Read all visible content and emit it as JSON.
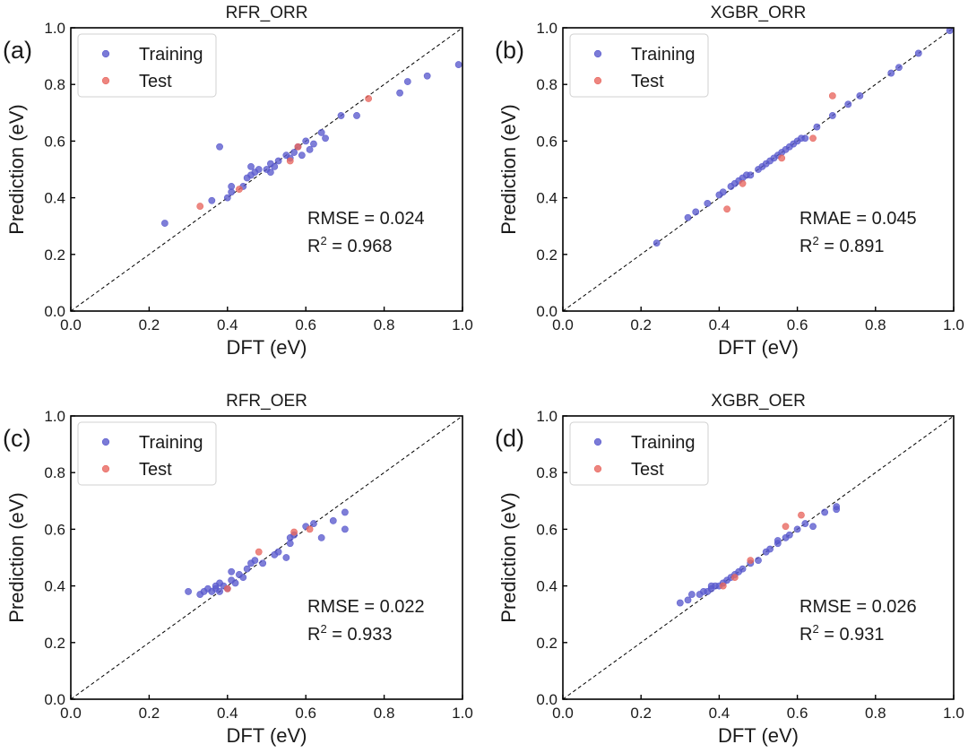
{
  "colors": {
    "training": "#5A5ACD",
    "test": "#E8675F"
  },
  "chart_data": [
    {
      "type": "scatter",
      "letter": "(a)",
      "title": "RFR_ORR",
      "xlabel": "DFT (eV)",
      "ylabel": "Prediction (eV)",
      "xlim": [
        0,
        1
      ],
      "ylim": [
        0,
        1
      ],
      "xticks": [
        "0.0",
        "0.2",
        "0.4",
        "0.6",
        "0.8",
        "1.0"
      ],
      "yticks": [
        "0.0",
        "0.2",
        "0.4",
        "0.6",
        "0.8",
        "1.0"
      ],
      "diagonal": true,
      "legend": {
        "position": "top-left",
        "entries": [
          "Training",
          "Test"
        ]
      },
      "metric": {
        "name": "RMSE",
        "value": "0.024"
      },
      "r2": {
        "base": "R",
        "sup": "2",
        "value": " = 0.968"
      },
      "series": [
        {
          "name": "Training",
          "points": [
            [
              0.24,
              0.31
            ],
            [
              0.36,
              0.39
            ],
            [
              0.38,
              0.58
            ],
            [
              0.4,
              0.4
            ],
            [
              0.41,
              0.42
            ],
            [
              0.41,
              0.44
            ],
            [
              0.44,
              0.44
            ],
            [
              0.45,
              0.47
            ],
            [
              0.46,
              0.48
            ],
            [
              0.46,
              0.51
            ],
            [
              0.47,
              0.49
            ],
            [
              0.48,
              0.5
            ],
            [
              0.5,
              0.5
            ],
            [
              0.51,
              0.52
            ],
            [
              0.51,
              0.49
            ],
            [
              0.52,
              0.51
            ],
            [
              0.53,
              0.53
            ],
            [
              0.55,
              0.55
            ],
            [
              0.56,
              0.54
            ],
            [
              0.57,
              0.56
            ],
            [
              0.58,
              0.58
            ],
            [
              0.59,
              0.55
            ],
            [
              0.6,
              0.6
            ],
            [
              0.61,
              0.57
            ],
            [
              0.62,
              0.59
            ],
            [
              0.64,
              0.63
            ],
            [
              0.65,
              0.61
            ],
            [
              0.69,
              0.69
            ],
            [
              0.73,
              0.69
            ],
            [
              0.84,
              0.77
            ],
            [
              0.86,
              0.81
            ],
            [
              0.91,
              0.83
            ],
            [
              0.99,
              0.87
            ]
          ]
        },
        {
          "name": "Test",
          "points": [
            [
              0.33,
              0.37
            ],
            [
              0.43,
              0.43
            ],
            [
              0.56,
              0.53
            ],
            [
              0.58,
              0.58
            ],
            [
              0.76,
              0.75
            ]
          ]
        }
      ]
    },
    {
      "type": "scatter",
      "letter": "(b)",
      "title": "XGBR_ORR",
      "xlabel": "DFT (eV)",
      "ylabel": "Prediction (eV)",
      "xlim": [
        0,
        1
      ],
      "ylim": [
        0,
        1
      ],
      "xticks": [
        "0.0",
        "0.2",
        "0.4",
        "0.6",
        "0.8",
        "1.0"
      ],
      "yticks": [
        "0.0",
        "0.2",
        "0.4",
        "0.6",
        "0.8",
        "1.0"
      ],
      "diagonal": true,
      "legend": {
        "position": "top-left",
        "entries": [
          "Training",
          "Test"
        ]
      },
      "metric": {
        "name": "RMAE",
        "value": "0.045"
      },
      "r2": {
        "base": "R",
        "sup": "2",
        "value": " = 0.891"
      },
      "series": [
        {
          "name": "Training",
          "points": [
            [
              0.24,
              0.24
            ],
            [
              0.32,
              0.33
            ],
            [
              0.34,
              0.35
            ],
            [
              0.37,
              0.38
            ],
            [
              0.4,
              0.41
            ],
            [
              0.41,
              0.42
            ],
            [
              0.43,
              0.44
            ],
            [
              0.44,
              0.45
            ],
            [
              0.45,
              0.46
            ],
            [
              0.46,
              0.47
            ],
            [
              0.47,
              0.48
            ],
            [
              0.48,
              0.48
            ],
            [
              0.5,
              0.5
            ],
            [
              0.51,
              0.51
            ],
            [
              0.52,
              0.52
            ],
            [
              0.53,
              0.53
            ],
            [
              0.54,
              0.54
            ],
            [
              0.55,
              0.55
            ],
            [
              0.56,
              0.56
            ],
            [
              0.57,
              0.57
            ],
            [
              0.58,
              0.58
            ],
            [
              0.59,
              0.59
            ],
            [
              0.6,
              0.6
            ],
            [
              0.61,
              0.61
            ],
            [
              0.62,
              0.61
            ],
            [
              0.65,
              0.65
            ],
            [
              0.69,
              0.69
            ],
            [
              0.73,
              0.73
            ],
            [
              0.76,
              0.76
            ],
            [
              0.84,
              0.84
            ],
            [
              0.86,
              0.86
            ],
            [
              0.91,
              0.91
            ],
            [
              0.99,
              0.99
            ]
          ]
        },
        {
          "name": "Test",
          "points": [
            [
              0.42,
              0.36
            ],
            [
              0.46,
              0.45
            ],
            [
              0.56,
              0.54
            ],
            [
              0.64,
              0.61
            ],
            [
              0.69,
              0.76
            ]
          ]
        }
      ]
    },
    {
      "type": "scatter",
      "letter": "(c)",
      "title": "RFR_OER",
      "xlabel": "DFT (eV)",
      "ylabel": "Prediction (eV)",
      "xlim": [
        0,
        1
      ],
      "ylim": [
        0,
        1
      ],
      "xticks": [
        "0.0",
        "0.2",
        "0.4",
        "0.6",
        "0.8",
        "1.0"
      ],
      "yticks": [
        "0.0",
        "0.2",
        "0.4",
        "0.6",
        "0.8",
        "1.0"
      ],
      "diagonal": true,
      "legend": {
        "position": "top-left",
        "entries": [
          "Training",
          "Test"
        ]
      },
      "metric": {
        "name": "RMSE",
        "value": "0.022"
      },
      "r2": {
        "base": "R",
        "sup": "2",
        "value": " = 0.933"
      },
      "series": [
        {
          "name": "Training",
          "points": [
            [
              0.3,
              0.38
            ],
            [
              0.33,
              0.37
            ],
            [
              0.34,
              0.38
            ],
            [
              0.35,
              0.39
            ],
            [
              0.36,
              0.38
            ],
            [
              0.37,
              0.39
            ],
            [
              0.37,
              0.4
            ],
            [
              0.38,
              0.38
            ],
            [
              0.38,
              0.41
            ],
            [
              0.39,
              0.4
            ],
            [
              0.4,
              0.39
            ],
            [
              0.41,
              0.42
            ],
            [
              0.41,
              0.45
            ],
            [
              0.42,
              0.41
            ],
            [
              0.43,
              0.44
            ],
            [
              0.44,
              0.43
            ],
            [
              0.45,
              0.46
            ],
            [
              0.46,
              0.48
            ],
            [
              0.47,
              0.49
            ],
            [
              0.49,
              0.48
            ],
            [
              0.52,
              0.51
            ],
            [
              0.53,
              0.52
            ],
            [
              0.55,
              0.5
            ],
            [
              0.56,
              0.55
            ],
            [
              0.56,
              0.57
            ],
            [
              0.57,
              0.58
            ],
            [
              0.6,
              0.61
            ],
            [
              0.62,
              0.62
            ],
            [
              0.64,
              0.57
            ],
            [
              0.67,
              0.63
            ],
            [
              0.7,
              0.6
            ],
            [
              0.7,
              0.66
            ]
          ]
        },
        {
          "name": "Test",
          "points": [
            [
              0.4,
              0.39
            ],
            [
              0.48,
              0.52
            ],
            [
              0.57,
              0.59
            ],
            [
              0.61,
              0.6
            ]
          ]
        }
      ]
    },
    {
      "type": "scatter",
      "letter": "(d)",
      "title": "XGBR_OER",
      "xlabel": "DFT (eV)",
      "ylabel": "Prediction (eV)",
      "xlim": [
        0,
        1
      ],
      "ylim": [
        0,
        1
      ],
      "xticks": [
        "0.0",
        "0.2",
        "0.4",
        "0.6",
        "0.8",
        "1.0"
      ],
      "yticks": [
        "0.0",
        "0.2",
        "0.4",
        "0.6",
        "0.8",
        "1.0"
      ],
      "diagonal": true,
      "legend": {
        "position": "top-left",
        "entries": [
          "Training",
          "Test"
        ]
      },
      "metric": {
        "name": "RMSE",
        "value": "0.026"
      },
      "r2": {
        "base": "R",
        "sup": "2",
        "value": " = 0.931"
      },
      "series": [
        {
          "name": "Training",
          "points": [
            [
              0.3,
              0.34
            ],
            [
              0.32,
              0.35
            ],
            [
              0.33,
              0.37
            ],
            [
              0.35,
              0.37
            ],
            [
              0.36,
              0.38
            ],
            [
              0.37,
              0.38
            ],
            [
              0.38,
              0.39
            ],
            [
              0.38,
              0.4
            ],
            [
              0.39,
              0.4
            ],
            [
              0.4,
              0.4
            ],
            [
              0.41,
              0.41
            ],
            [
              0.42,
              0.42
            ],
            [
              0.43,
              0.43
            ],
            [
              0.44,
              0.44
            ],
            [
              0.45,
              0.45
            ],
            [
              0.46,
              0.46
            ],
            [
              0.48,
              0.48
            ],
            [
              0.5,
              0.49
            ],
            [
              0.52,
              0.52
            ],
            [
              0.53,
              0.53
            ],
            [
              0.55,
              0.55
            ],
            [
              0.55,
              0.56
            ],
            [
              0.57,
              0.57
            ],
            [
              0.58,
              0.58
            ],
            [
              0.6,
              0.6
            ],
            [
              0.62,
              0.62
            ],
            [
              0.64,
              0.61
            ],
            [
              0.67,
              0.66
            ],
            [
              0.7,
              0.67
            ],
            [
              0.7,
              0.68
            ]
          ]
        },
        {
          "name": "Test",
          "points": [
            [
              0.41,
              0.4
            ],
            [
              0.44,
              0.43
            ],
            [
              0.48,
              0.49
            ],
            [
              0.57,
              0.61
            ],
            [
              0.61,
              0.65
            ]
          ]
        }
      ]
    }
  ]
}
